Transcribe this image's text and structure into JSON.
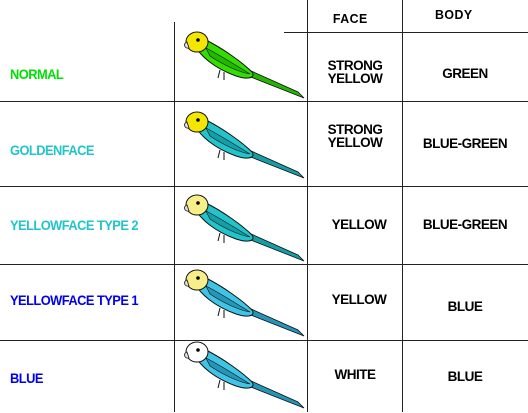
{
  "headers": {
    "face": "FACE",
    "body": "BODY"
  },
  "rows": [
    {
      "label": "NORMAL",
      "label_color": "#00e000",
      "face": [
        "STRONG",
        "YELLOW"
      ],
      "body": "GREEN",
      "head_color": "#f4e600",
      "body_color": "#33dd00",
      "wing_color": "#23b800"
    },
    {
      "label": "GOLDENFACE",
      "label_color": "#22c4cc",
      "face": [
        "STRONG",
        "YELLOW"
      ],
      "body": "BLUE-GREEN",
      "head_color": "#f4e600",
      "body_color": "#22c4cc",
      "wing_color": "#159ea6"
    },
    {
      "label": "YELLOWFACE TYPE 2",
      "label_color": "#22c4cc",
      "face": [
        "YELLOW"
      ],
      "body": "BLUE-GREEN",
      "head_color": "#f6ee88",
      "body_color": "#22c4cc",
      "wing_color": "#159ea6"
    },
    {
      "label": "YELLOWFACE TYPE 1",
      "label_color": "#0000ee",
      "face": [
        "YELLOW"
      ],
      "body": "BLUE",
      "head_color": "#f6ee88",
      "body_color": "#3fc4e6",
      "wing_color": "#2696b8"
    },
    {
      "label": "BLUE",
      "label_color": "#0000ee",
      "face": [
        "WHITE"
      ],
      "body": "BLUE",
      "head_color": "#ffffff",
      "body_color": "#3fc4e6",
      "wing_color": "#2696b8"
    }
  ]
}
